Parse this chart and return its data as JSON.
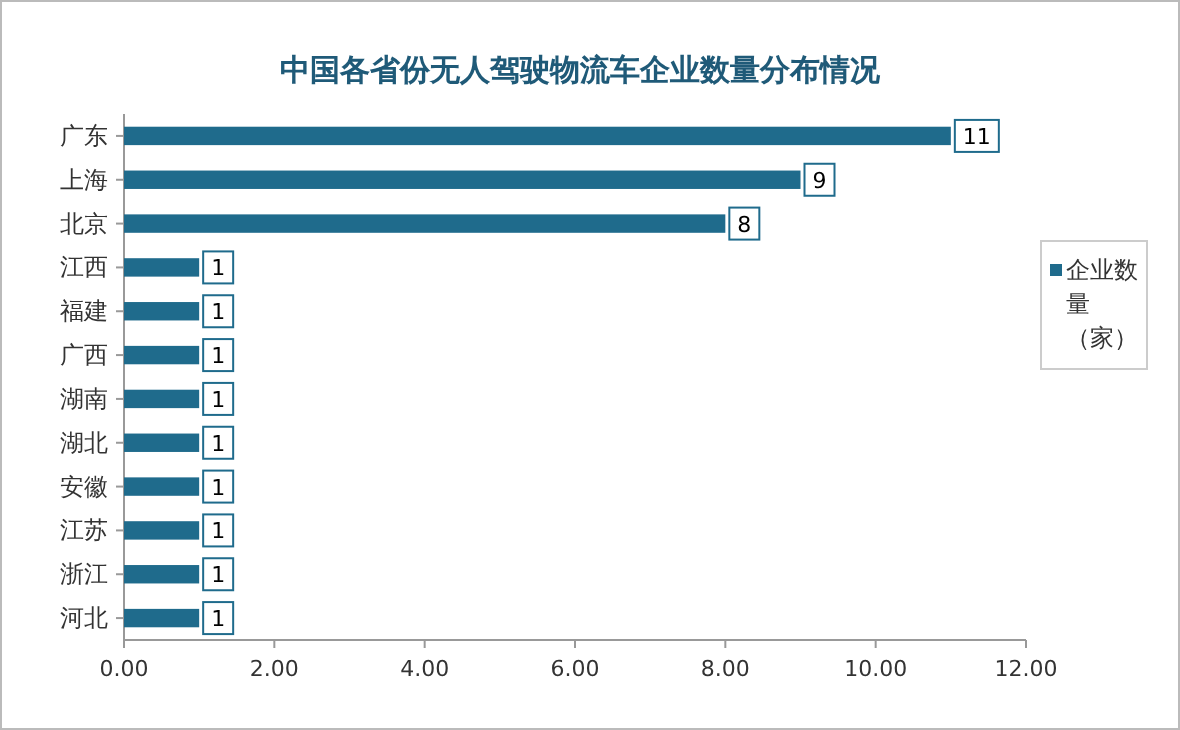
{
  "chart_data": {
    "type": "bar",
    "orientation": "horizontal",
    "title": "中国各省份无人驾驶物流车企业数量分布情况",
    "categories": [
      "广东",
      "上海",
      "北京",
      "江西",
      "福建",
      "广西",
      "湖南",
      "湖北",
      "安徽",
      "江苏",
      "浙江",
      "河北"
    ],
    "series": [
      {
        "name": "企业数量（家）",
        "color": "#1f6b8c",
        "values": [
          11,
          9,
          8,
          1,
          1,
          1,
          1,
          1,
          1,
          1,
          1,
          1
        ]
      }
    ],
    "xlim": [
      0,
      12
    ],
    "xticks": [
      {
        "value": 0,
        "label": "0.00"
      },
      {
        "value": 2,
        "label": "2.00"
      },
      {
        "value": 4,
        "label": "4.00"
      },
      {
        "value": 6,
        "label": "6.00"
      },
      {
        "value": 8,
        "label": "8.00"
      },
      {
        "value": 10,
        "label": "10.00"
      },
      {
        "value": 12,
        "label": "12.00"
      }
    ],
    "data_labels": true,
    "legend": "right"
  }
}
